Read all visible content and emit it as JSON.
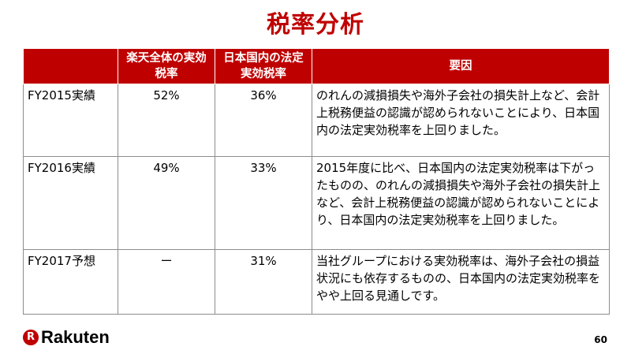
{
  "title": "税率分析",
  "table": {
    "headers": [
      "",
      "楽天全体の実効税率",
      "日本国内の法定実効税率",
      "要因"
    ],
    "rows": [
      {
        "label": "FY2015実績",
        "group_rate": "52%",
        "statutory_rate": "36%",
        "reason": "のれんの減損損失や海外子会社の損失計上など、会計上税務便益の認識が認められないことにより、日本国内の法定実効税率を上回りました。"
      },
      {
        "label": "FY2016実績",
        "group_rate": "49%",
        "statutory_rate": "33%",
        "reason": "2015年度に比べ、日本国内の法定実効税率は下がったものの、のれんの減損損失や海外子会社の損失計上など、会計上税務便益の認識が認められないことにより、日本国内の法定実効税率を上回りました。"
      },
      {
        "label": "FY2017予想",
        "group_rate": "ー",
        "statutory_rate": "31%",
        "reason": "当社グループにおける実効税率は、海外子会社の損益状況にも依存するものの、日本国内の法定実効税率をやや上回る見通しです。"
      }
    ]
  },
  "footer": {
    "logo_mark": "R",
    "logo_text": "Rakuten",
    "page_number": "60"
  },
  "colors": {
    "accent": "#bf0000",
    "border": "#8c8c8c"
  }
}
